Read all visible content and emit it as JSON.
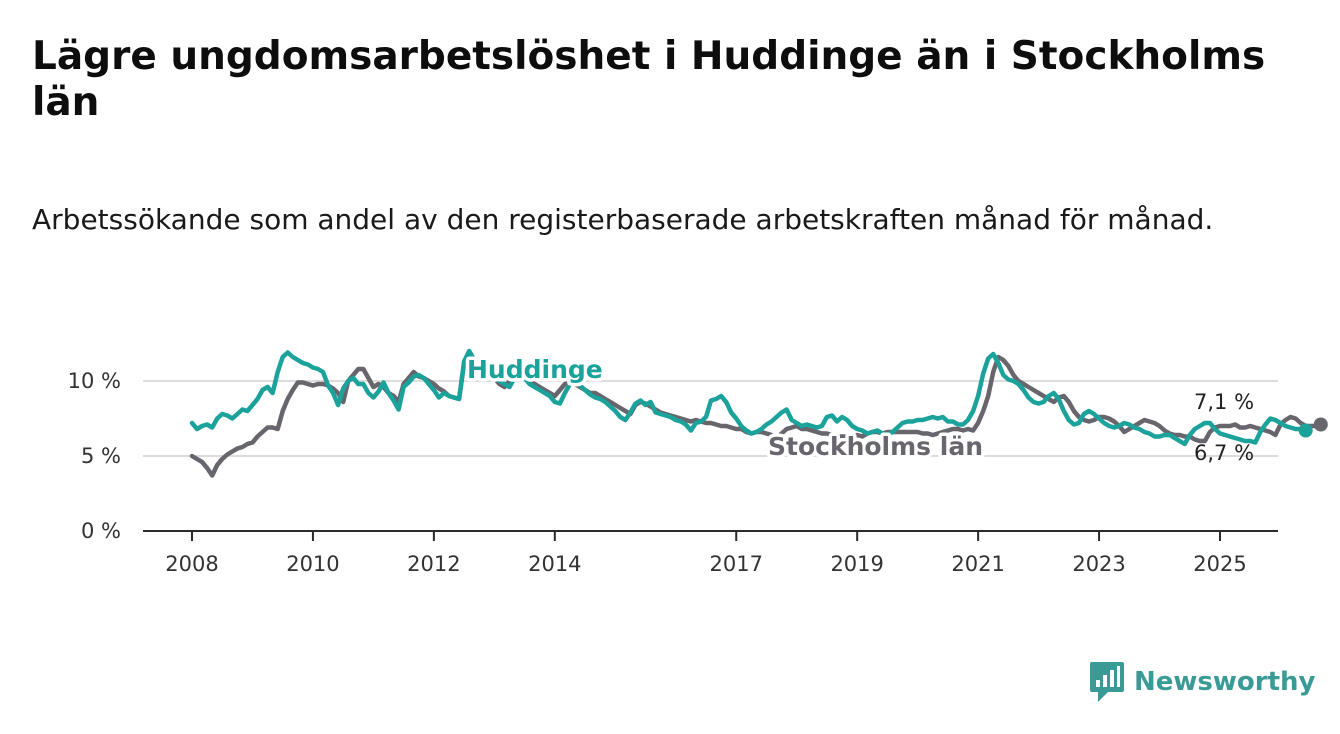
{
  "title": "Lägre ungdomsarbetslöshet i Huddinge än i Stockholms län",
  "subtitle": "Arbetssökande som andel av den registerbaserade arbetskraften månad för månad.",
  "brand": {
    "name": "Newsworthy",
    "color": "#3a9b96",
    "icon": "bar-chart-badge-icon"
  },
  "chart_data": {
    "type": "line",
    "x_start": "2008-01",
    "ylim": [
      0,
      12
    ],
    "y_ticks": [
      0,
      5,
      10
    ],
    "y_tick_labels": [
      "0 %",
      "5 %",
      "10 %"
    ],
    "x_ticks": [
      2008,
      2010,
      2012,
      2014,
      2017,
      2019,
      2021,
      2023,
      2025
    ],
    "grid": true,
    "series": [
      {
        "name": "Stockholms län",
        "color": "#68656d",
        "end_label": "7,1 %",
        "values": [
          5.0,
          4.8,
          4.6,
          4.2,
          3.7,
          4.4,
          4.8,
          5.1,
          5.3,
          5.5,
          5.6,
          5.8,
          5.9,
          6.3,
          6.6,
          6.9,
          6.9,
          6.8,
          8.0,
          8.8,
          9.4,
          9.9,
          9.9,
          9.8,
          9.7,
          9.8,
          9.8,
          9.7,
          9.5,
          9.2,
          8.6,
          10.0,
          10.4,
          10.8,
          10.8,
          10.2,
          9.6,
          9.8,
          9.6,
          9.2,
          9.0,
          8.6,
          9.8,
          10.2,
          10.6,
          10.3,
          10.2,
          10.0,
          9.8,
          9.5,
          9.3,
          9.0,
          8.9,
          8.8,
          11.2,
          11.8,
          11.2,
          10.8,
          10.5,
          10.3,
          10.2,
          9.8,
          9.6,
          10.0,
          10.2,
          10.4,
          10.3,
          10.0,
          9.8,
          9.6,
          9.4,
          9.2,
          9.0,
          9.4,
          9.8,
          10.0,
          9.8,
          9.6,
          9.4,
          9.2,
          9.2,
          9.0,
          8.8,
          8.6,
          8.4,
          8.2,
          8.0,
          7.8,
          8.4,
          8.6,
          8.5,
          8.3,
          8.1,
          7.9,
          7.8,
          7.7,
          7.6,
          7.5,
          7.4,
          7.3,
          7.4,
          7.3,
          7.2,
          7.2,
          7.1,
          7.0,
          7.0,
          6.9,
          6.8,
          6.8,
          6.6,
          6.5,
          6.6,
          6.6,
          6.5,
          6.4,
          6.2,
          6.5,
          6.8,
          6.9,
          7.0,
          6.8,
          6.8,
          6.7,
          6.6,
          6.5,
          6.5,
          6.4,
          6.3,
          6.3,
          6.3,
          6.3,
          6.4,
          6.3,
          6.5,
          6.6,
          6.6,
          6.5,
          6.6,
          6.6,
          6.6,
          6.6,
          6.6,
          6.6,
          6.6,
          6.5,
          6.5,
          6.4,
          6.5,
          6.6,
          6.7,
          6.8,
          6.8,
          6.7,
          6.8,
          6.7,
          7.2,
          8.0,
          9.0,
          10.6,
          11.6,
          11.4,
          11.0,
          10.4,
          10.0,
          9.8,
          9.6,
          9.4,
          9.2,
          9.0,
          8.8,
          8.6,
          8.9,
          9.0,
          8.6,
          8.0,
          7.6,
          7.4,
          7.3,
          7.4,
          7.6,
          7.6,
          7.5,
          7.3,
          7.0,
          6.6,
          6.8,
          7.0,
          7.2,
          7.4,
          7.3,
          7.2,
          7.0,
          6.7,
          6.5,
          6.4,
          6.4,
          6.3,
          6.3,
          6.1,
          6.0,
          6.0,
          6.6,
          6.9,
          7.0,
          7.0,
          7.0,
          7.1,
          6.9,
          6.9,
          7.0,
          6.9,
          6.8,
          6.7,
          6.6,
          6.4,
          7.1,
          7.4,
          7.6,
          7.5,
          7.2,
          7.0,
          7.0,
          7.0,
          7.1
        ]
      },
      {
        "name": "Huddinge",
        "color": "#1ba29a",
        "end_label": "6,7 %",
        "values": [
          7.2,
          6.8,
          7.0,
          7.1,
          6.9,
          7.5,
          7.8,
          7.7,
          7.5,
          7.8,
          8.1,
          8.0,
          8.4,
          8.8,
          9.4,
          9.6,
          9.2,
          10.6,
          11.6,
          11.9,
          11.6,
          11.4,
          11.2,
          11.1,
          10.9,
          10.8,
          10.6,
          9.7,
          9.2,
          8.4,
          9.5,
          10.0,
          10.2,
          9.8,
          9.8,
          9.2,
          8.9,
          9.3,
          9.9,
          9.2,
          8.7,
          8.1,
          9.6,
          9.9,
          10.3,
          10.4,
          10.2,
          9.8,
          9.4,
          8.9,
          9.2,
          9.0,
          8.9,
          8.8,
          11.3,
          12.0,
          11.4,
          11.0,
          10.8,
          10.5,
          10.3,
          10.0,
          9.8,
          9.6,
          10.2,
          10.4,
          10.2,
          9.8,
          9.6,
          9.4,
          9.2,
          9.0,
          8.6,
          8.5,
          9.2,
          9.8,
          10.0,
          9.7,
          9.4,
          9.1,
          8.9,
          8.8,
          8.6,
          8.3,
          8.0,
          7.6,
          7.4,
          7.9,
          8.5,
          8.7,
          8.4,
          8.6,
          7.9,
          7.8,
          7.7,
          7.6,
          7.4,
          7.3,
          7.1,
          6.7,
          7.2,
          7.3,
          7.6,
          8.7,
          8.8,
          9.0,
          8.6,
          7.9,
          7.5,
          7.0,
          6.7,
          6.5,
          6.6,
          6.8,
          7.1,
          7.3,
          7.6,
          7.9,
          8.1,
          7.4,
          7.2,
          7.0,
          7.1,
          7.0,
          6.9,
          7.0,
          7.6,
          7.7,
          7.3,
          7.6,
          7.4,
          7.0,
          6.8,
          6.7,
          6.5,
          6.6,
          6.7,
          6.5,
          6.4,
          6.6,
          6.9,
          7.2,
          7.3,
          7.3,
          7.4,
          7.4,
          7.5,
          7.6,
          7.5,
          7.6,
          7.3,
          7.3,
          7.1,
          7.1,
          7.4,
          8.0,
          9.0,
          10.5,
          11.5,
          11.8,
          11.2,
          10.4,
          10.1,
          10.0,
          9.8,
          9.4,
          8.9,
          8.6,
          8.5,
          8.6,
          9.0,
          9.2,
          8.8,
          8.0,
          7.4,
          7.1,
          7.2,
          7.8,
          8.0,
          7.8,
          7.5,
          7.2,
          7.0,
          6.9,
          7.0,
          7.2,
          7.1,
          6.9,
          6.8,
          6.6,
          6.5,
          6.3,
          6.3,
          6.4,
          6.4,
          6.2,
          6.0,
          5.8,
          6.4,
          6.8,
          7.0,
          7.2,
          7.2,
          6.8,
          6.5,
          6.4,
          6.3,
          6.2,
          6.1,
          6.0,
          6.0,
          5.9,
          6.6,
          7.1,
          7.5,
          7.4,
          7.2,
          7.0,
          6.9,
          6.8,
          6.8,
          6.7
        ]
      }
    ]
  }
}
